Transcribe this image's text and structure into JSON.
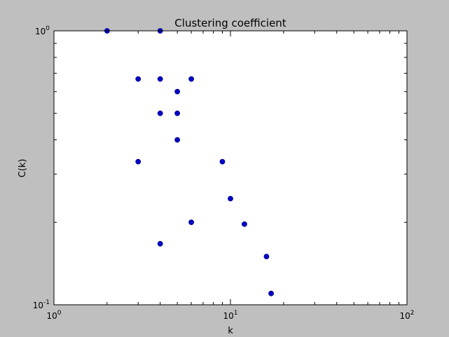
{
  "chart_data": {
    "type": "scatter",
    "title": "Clustering coefficient",
    "xlabel": "k",
    "ylabel": "C(k)",
    "xscale": "log",
    "yscale": "log",
    "xlim": [
      1,
      100
    ],
    "ylim": [
      0.1,
      1
    ],
    "grid": false,
    "legend": "none",
    "x_ticks": [
      {
        "value": 1,
        "base": "10",
        "exp": "0"
      },
      {
        "value": 10,
        "base": "10",
        "exp": "1"
      },
      {
        "value": 100,
        "base": "10",
        "exp": "2"
      }
    ],
    "y_ticks": [
      {
        "value": 0.1,
        "base": "10",
        "exp": "-1"
      },
      {
        "value": 1,
        "base": "10",
        "exp": "0"
      }
    ],
    "marker_color": "#0000cc",
    "marker_edge_color": "#00007a",
    "points": [
      {
        "x": 2,
        "y": 1.0
      },
      {
        "x": 4,
        "y": 1.0
      },
      {
        "x": 3,
        "y": 0.667
      },
      {
        "x": 4,
        "y": 0.667
      },
      {
        "x": 6,
        "y": 0.667
      },
      {
        "x": 5,
        "y": 0.6
      },
      {
        "x": 4,
        "y": 0.5
      },
      {
        "x": 5,
        "y": 0.5
      },
      {
        "x": 5,
        "y": 0.4
      },
      {
        "x": 3,
        "y": 0.333
      },
      {
        "x": 9,
        "y": 0.333
      },
      {
        "x": 10,
        "y": 0.244
      },
      {
        "x": 6,
        "y": 0.2
      },
      {
        "x": 12,
        "y": 0.197
      },
      {
        "x": 4,
        "y": 0.167
      },
      {
        "x": 16,
        "y": 0.15
      },
      {
        "x": 17,
        "y": 0.11
      }
    ]
  },
  "colors": {
    "figure_background": "#bfbfbf",
    "plot_background": "#ffffff",
    "axes_edge": "#000000"
  }
}
